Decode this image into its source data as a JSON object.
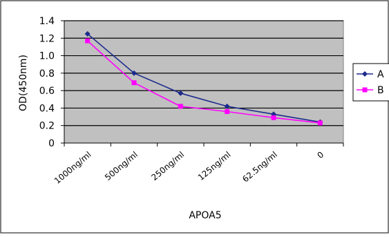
{
  "chart_data": {
    "type": "line",
    "title": "",
    "xlabel": "APOA5",
    "ylabel": "OD(450nm)",
    "categories": [
      "1000ng/ml",
      "500ng/ml",
      "250ng/ml",
      "125ng/ml",
      "62.5ng/ml",
      "0"
    ],
    "ylim": [
      0,
      1.4
    ],
    "yticks": [
      "0",
      "0.2",
      "0.4",
      "0.6",
      "0.8",
      "1.0",
      "1.2",
      "1.4"
    ],
    "grid": true,
    "legend_position": "right",
    "series": [
      {
        "name": "A",
        "values": [
          1.25,
          0.8,
          0.57,
          0.42,
          0.33,
          0.24
        ]
      },
      {
        "name": "B",
        "values": [
          1.17,
          0.69,
          0.42,
          0.36,
          0.29,
          0.23
        ]
      }
    ],
    "colors": {
      "plot_bg": "#c0c0c0",
      "gridline": "#000000",
      "series_A": "#1c2a8c",
      "series_B": "#ff00ff"
    },
    "markers": {
      "A": "diamond",
      "B": "square"
    }
  }
}
